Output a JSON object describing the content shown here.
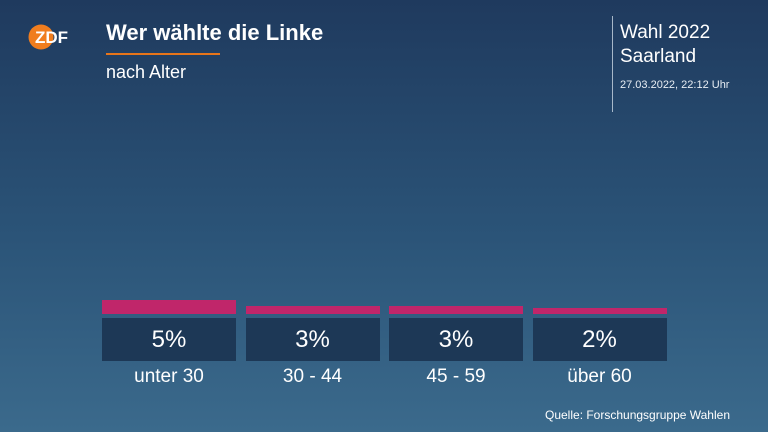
{
  "header": {
    "logo_text": "ZDF",
    "title": "Wer wählte die Linke",
    "subtitle": "nach Alter"
  },
  "info": {
    "line1": "Wahl 2022",
    "line2": "Saarland",
    "timestamp": "27.03.2022, 22:12 Uhr"
  },
  "source": "Quelle: Forschungsgruppe Wahlen",
  "colors": {
    "accent": "#e8751a",
    "bar": "#c0266a",
    "value_box": "#1d3856"
  },
  "chart_data": {
    "type": "bar",
    "categories": [
      "unter 30",
      "30 - 44",
      "45 - 59",
      "über 60"
    ],
    "values": [
      5,
      3,
      3,
      2
    ],
    "value_labels": [
      "5%",
      "3%",
      "3%",
      "2%"
    ],
    "unit": "%",
    "ylim": [
      0,
      100
    ],
    "grid": false
  }
}
